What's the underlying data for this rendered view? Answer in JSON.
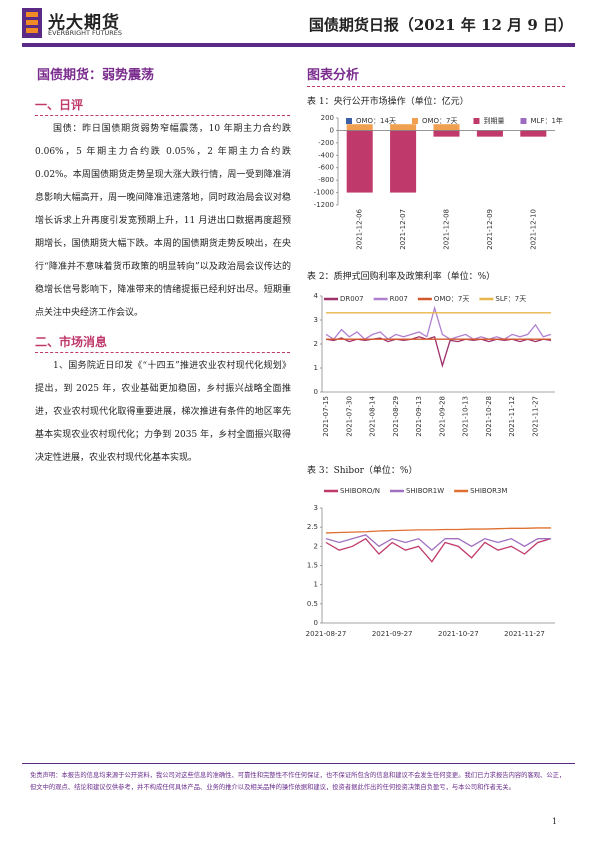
{
  "header": {
    "logo": "光大期货",
    "logo_en": "EVERBRIGHT FUTURES",
    "title": "国债期货日报（2021 年 12 月 9 日）"
  },
  "left": {
    "title": "国债期货：弱势震荡",
    "sections": [
      {
        "heading": "一、日评",
        "paragraphs": [
          "国债：昨日国债期货弱势窄幅震荡，10 年期主力合约跌 0.06%，5 年期主力合约跌 0.05%，2 年期主力合约跌 0.02%。本周国债期货走势呈现大涨大跌行情，周一受到降准消息影响大幅高开，周一晚间降准迅速落地，同时政治局会议对稳增长诉求上升再度引发宽预期上升，11 月进出口数据再度超预期增长，国债期货大幅下跌。本周的国债期货走势反映出，在央行“降准并不意味着货币政策的明显转向”以及政治局会议传达的稳增长信号影响下，降准带来的情绪提振已经利好出尽。短期重点关注中央经济工作会议。"
        ]
      },
      {
        "heading": "二、市场消息",
        "paragraphs": [
          "1、国务院近日印发《“十四五”推进农业农村现代化规划》提出，到 2025 年，农业基础更加稳固，乡村振兴战略全面推进，农业农村现代化取得重要进展，梯次推进有条件的地区率先基本实现农业农村现代化；力争到 2035 年，乡村全面振兴取得决定性进展，农业农村现代化基本实现。"
        ]
      }
    ]
  },
  "right_heading": "图表分析",
  "chart_data": [
    {
      "type": "bar",
      "title": "表 1：央行公开市场操作（单位：亿元）",
      "categories": [
        "2021-12-06",
        "2021-12-07",
        "2021-12-08",
        "2021-12-09",
        "2021-12-10"
      ],
      "series": [
        {
          "name": "OMO：14天",
          "color": "#3d5fa8",
          "values": [
            null,
            null,
            null,
            null,
            null
          ]
        },
        {
          "name": "OMO：7天",
          "color": "#f0a050",
          "values": [
            100,
            100,
            100,
            null,
            null
          ]
        },
        {
          "name": "到期量",
          "color": "#c0396b",
          "values": [
            -1000,
            -1000,
            -100,
            -100,
            -100
          ]
        },
        {
          "name": "MLF：1年",
          "color": "#9b6cc0",
          "values": [
            null,
            null,
            null,
            null,
            null
          ]
        }
      ],
      "ylim": [
        -1200,
        200
      ],
      "yticks": [
        -1200,
        -1000,
        -800,
        -600,
        -400,
        -200,
        0,
        200
      ],
      "grid": false
    },
    {
      "type": "line",
      "title": "表 2：质押式回购利率及政策利率（单位：%）",
      "categories": [
        "2021-07-15",
        null,
        null,
        "2021-07-30",
        null,
        null,
        "2021-08-14",
        null,
        null,
        "2021-08-29",
        null,
        null,
        "2021-09-13",
        null,
        null,
        "2021-09-28",
        null,
        null,
        "2021-10-13",
        null,
        null,
        "2021-10-28",
        null,
        null,
        "2021-11-12",
        null,
        null,
        "2021-11-27",
        null,
        null
      ],
      "series": [
        {
          "name": "DR007",
          "color": "#a0306a",
          "values": [
            2.2,
            2.15,
            2.25,
            2.1,
            2.2,
            2.15,
            2.2,
            2.25,
            2.1,
            2.2,
            2.15,
            2.2,
            2.3,
            2.2,
            2.3,
            1.1,
            2.15,
            2.1,
            2.2,
            2.15,
            2.2,
            2.1,
            2.2,
            2.15,
            2.2,
            2.1,
            2.2,
            2.1,
            2.2,
            2.15
          ]
        },
        {
          "name": "R007",
          "color": "#b080d0",
          "values": [
            2.4,
            2.2,
            2.6,
            2.3,
            2.5,
            2.2,
            2.4,
            2.5,
            2.2,
            2.4,
            2.3,
            2.4,
            2.5,
            2.3,
            3.5,
            2.4,
            2.2,
            2.3,
            2.4,
            2.2,
            2.3,
            2.2,
            2.3,
            2.2,
            2.4,
            2.3,
            2.4,
            2.8,
            2.3,
            2.4
          ]
        },
        {
          "name": "OMO：7天",
          "color": "#d4572a",
          "values": [
            2.2,
            2.2,
            2.2,
            2.2,
            2.2,
            2.2,
            2.2,
            2.2,
            2.2,
            2.2,
            2.2,
            2.2,
            2.2,
            2.2,
            2.2,
            2.2,
            2.2,
            2.2,
            2.2,
            2.2,
            2.2,
            2.2,
            2.2,
            2.2,
            2.2,
            2.2,
            2.2,
            2.2,
            2.2,
            2.2
          ]
        },
        {
          "name": "SLF：7天",
          "color": "#e8b54a",
          "values": [
            3.3,
            3.3,
            3.3,
            3.3,
            3.3,
            3.3,
            3.3,
            3.3,
            3.3,
            3.3,
            3.3,
            3.3,
            3.3,
            3.3,
            3.3,
            3.3,
            3.3,
            3.3,
            3.3,
            3.3,
            3.3,
            3.3,
            3.3,
            3.3,
            3.3,
            3.3,
            3.3,
            3.3,
            3.3,
            3.3
          ]
        }
      ],
      "ylim": [
        0,
        4
      ],
      "yticks": [
        0,
        1,
        2,
        3,
        4
      ],
      "grid": false
    },
    {
      "type": "line",
      "title": "表 3：Shibor（单位：%）",
      "categories": [
        "2021-08-27",
        null,
        null,
        null,
        null,
        "2021-09-27",
        null,
        null,
        null,
        null,
        "2021-10-27",
        null,
        null,
        null,
        null,
        "2021-11-27",
        null,
        null
      ],
      "series": [
        {
          "name": "SHIBORO/N",
          "color": "#c0396b",
          "values": [
            2.1,
            1.9,
            2.0,
            2.2,
            1.8,
            2.1,
            1.9,
            2.0,
            1.6,
            2.1,
            2.0,
            1.7,
            2.1,
            1.9,
            2.0,
            1.8,
            2.1,
            2.2
          ]
        },
        {
          "name": "SHIBOR1W",
          "color": "#a070c0",
          "values": [
            2.2,
            2.1,
            2.2,
            2.3,
            2.0,
            2.2,
            2.1,
            2.2,
            1.9,
            2.2,
            2.2,
            2.0,
            2.2,
            2.1,
            2.2,
            2.0,
            2.2,
            2.2
          ]
        },
        {
          "name": "SHIBOR3M",
          "color": "#e07030",
          "values": [
            2.35,
            2.36,
            2.37,
            2.38,
            2.4,
            2.41,
            2.42,
            2.43,
            2.43,
            2.44,
            2.44,
            2.45,
            2.45,
            2.46,
            2.47,
            2.47,
            2.48,
            2.48
          ]
        }
      ],
      "ylim": [
        0,
        3
      ],
      "yticks": [
        0,
        0.5,
        1,
        1.5,
        2,
        2.5,
        3
      ],
      "grid": false
    }
  ],
  "footer": {
    "disclaimer": "免责声明：本报告的信息均来源于公开资料，我公司对这些信息的准确性、可靠性和完整性不作任何保证，也不保证所包含的信息和建议不会发生任何变更。我们已力求报告内容的客观、公正，但文中的观点、结论和建议仅供参考，并不构成任何具体产品、业务的推介以及相关品种的操作依据和建议，投资者据此作出的任何投资决策自负盈亏，与本公司和作者无关。",
    "page": "1"
  }
}
